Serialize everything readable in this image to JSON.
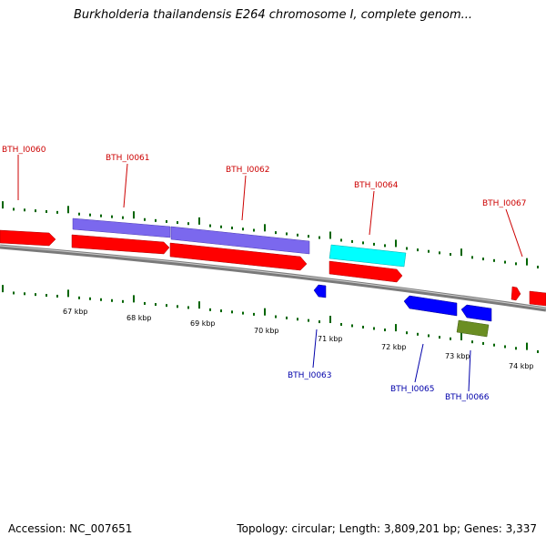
{
  "title": "Burkholderia thailandensis E264 chromosome I, complete genom...",
  "footer": {
    "accession": "Accession: NC_007651",
    "summary": "Topology: circular; Length: 3,809,201 bp; Genes: 3,337"
  },
  "scale_labels": [
    "67 kbp",
    "68 kbp",
    "69 kbp",
    "70 kbp",
    "71 kbp",
    "72 kbp",
    "73 kbp",
    "74 kbp"
  ],
  "gene_labels_forward": [
    "BTH_I0060",
    "BTH_I0061",
    "BTH_I0062",
    "BTH_I0064",
    "BTH_I0067"
  ],
  "gene_labels_reverse": [
    "BTH_I0063",
    "BTH_I0065",
    "BTH_I0066"
  ],
  "colors": {
    "cds": "#ff0000",
    "gene_purple": "#7b68ee",
    "gene_cyan": "#00ffff",
    "gene_blue": "#0000ff",
    "gene_olive": "#6b8e23",
    "forward_label": "#cc0000",
    "reverse_label": "#0000aa",
    "tick": "#006400",
    "backbone": "#808080"
  }
}
